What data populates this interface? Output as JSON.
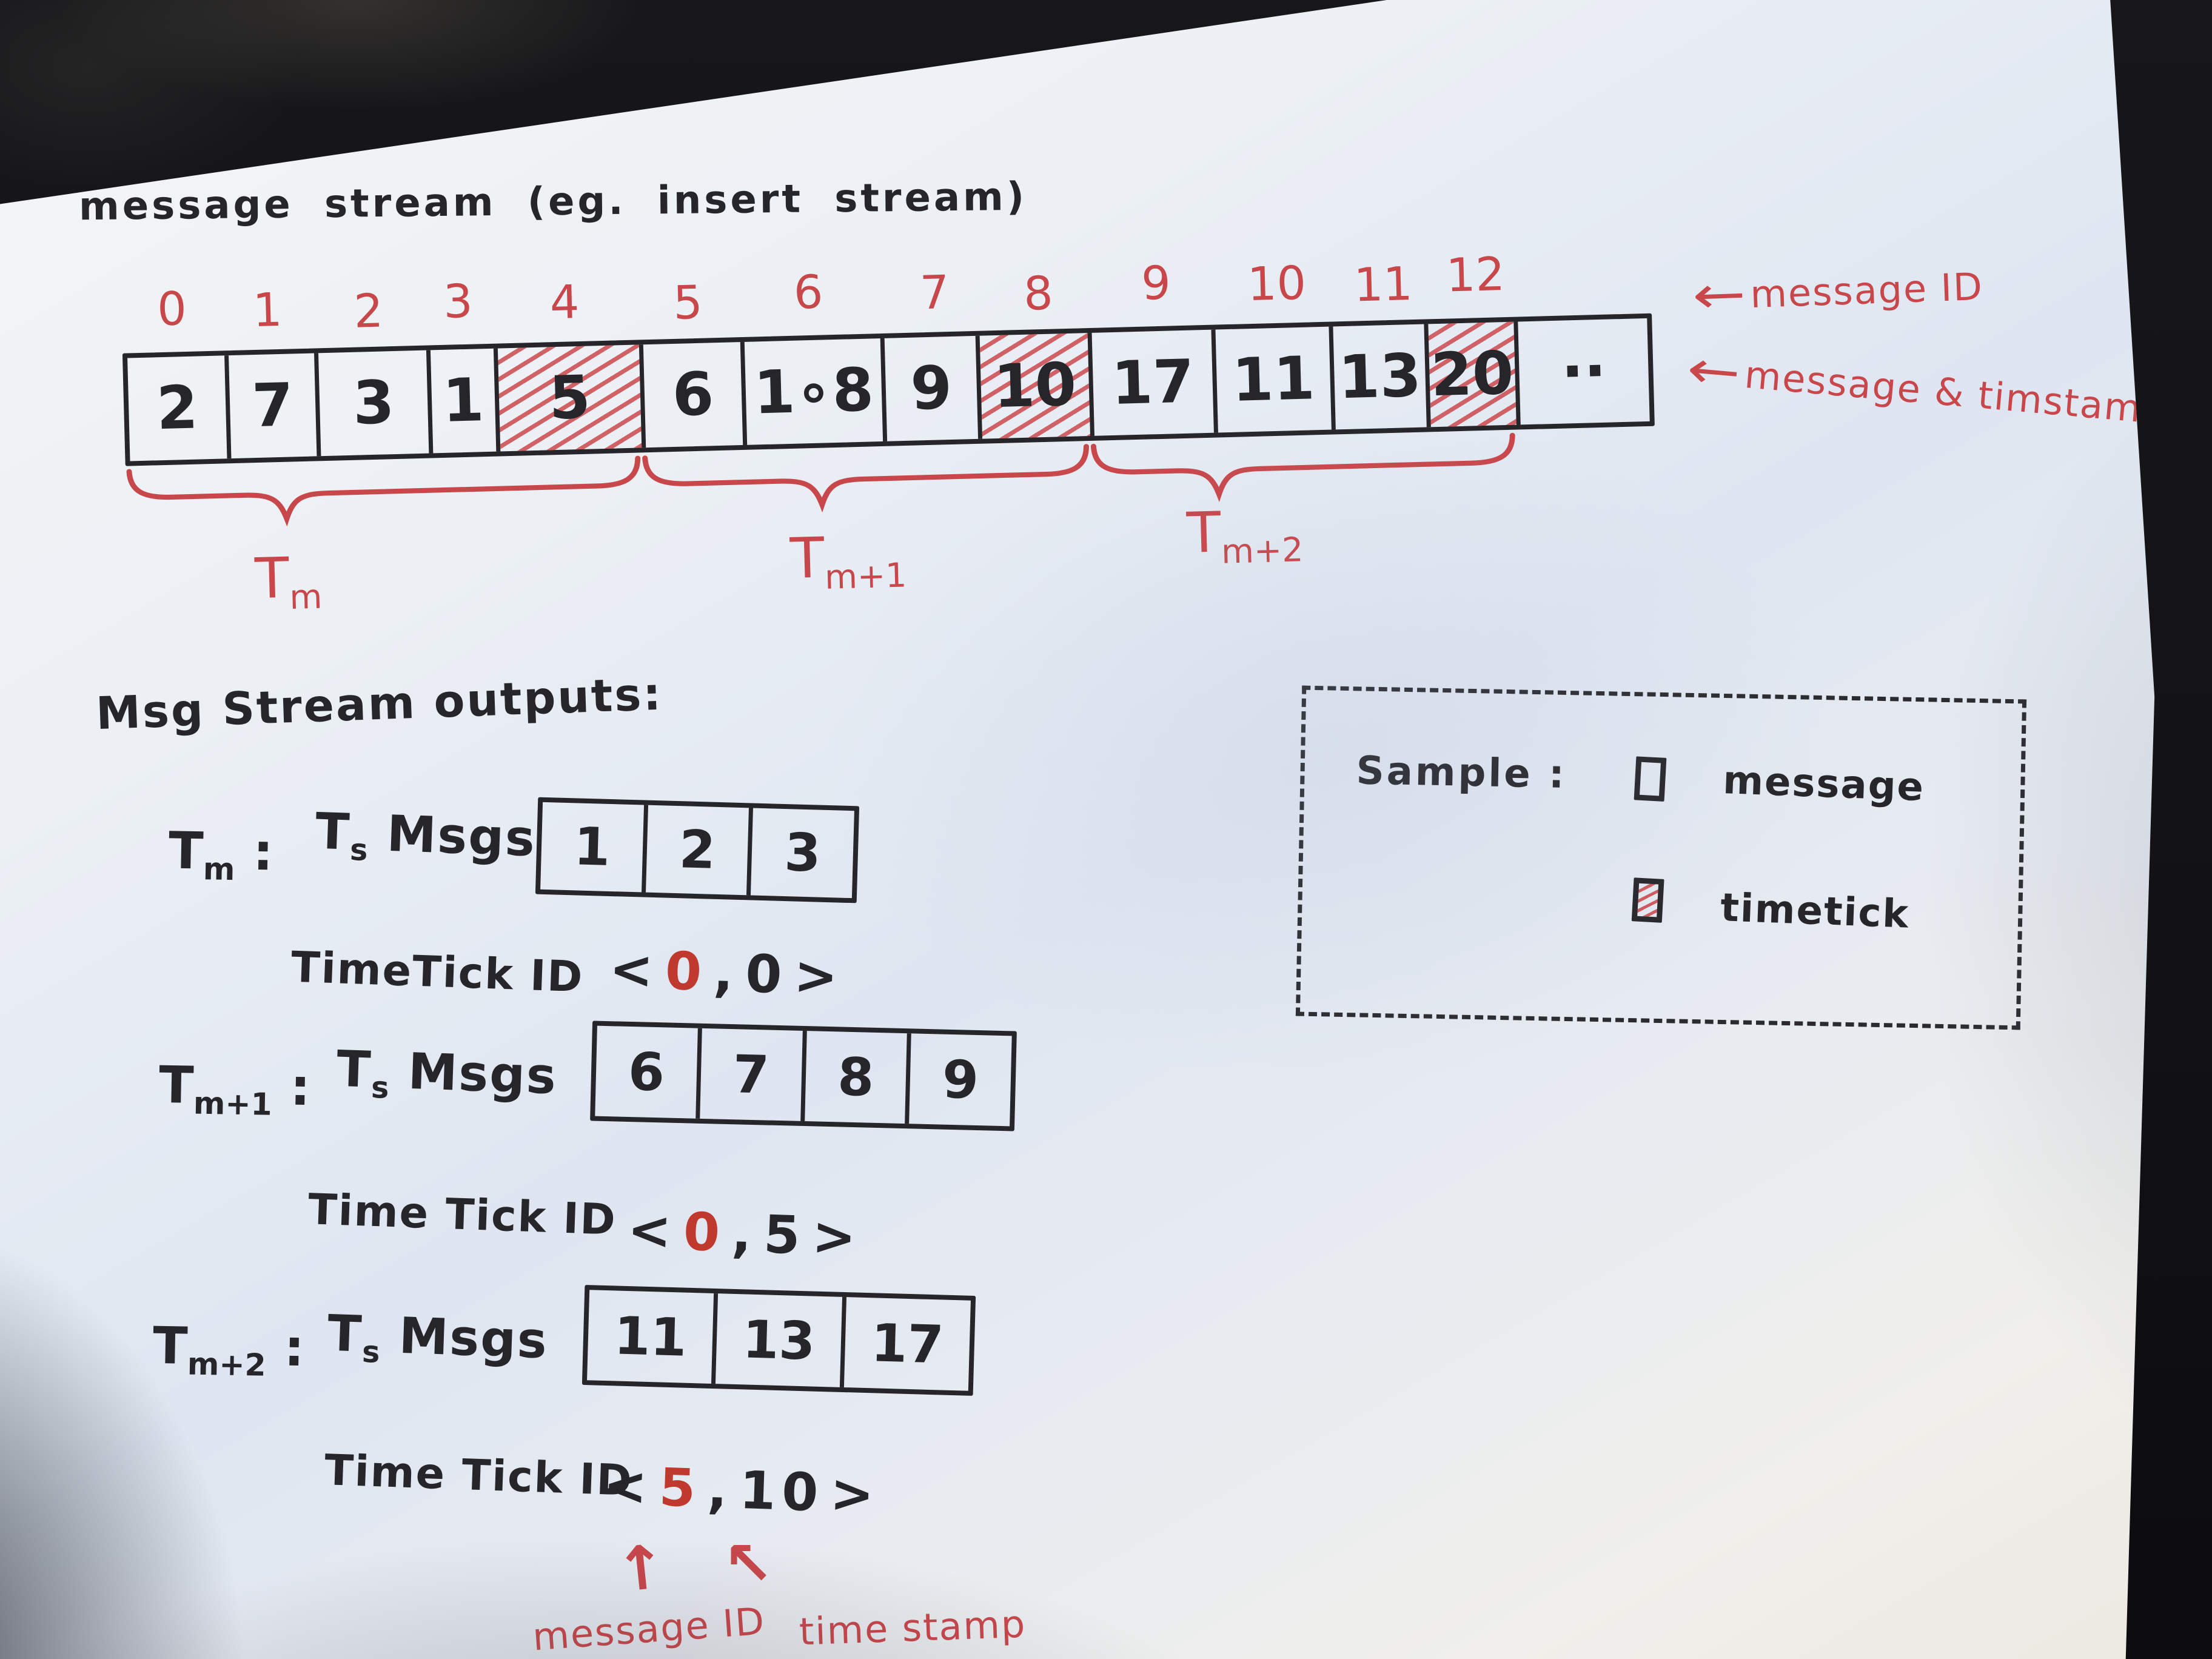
{
  "title": "message stream  (eg. insert stream)",
  "stream": {
    "indices": [
      "0",
      "1",
      "2",
      "3",
      "4",
      "5",
      "6",
      "7",
      "8",
      "9",
      "10",
      "11",
      "12"
    ],
    "cells": [
      {
        "value": "2",
        "timetick": false
      },
      {
        "value": "7",
        "timetick": false
      },
      {
        "value": "3",
        "timetick": false
      },
      {
        "value": "1",
        "timetick": false
      },
      {
        "value": "5",
        "timetick": true
      },
      {
        "value": "6",
        "timetick": false
      },
      {
        "value": "1∘8",
        "timetick": false
      },
      {
        "value": "9",
        "timetick": false
      },
      {
        "value": "10",
        "timetick": true
      },
      {
        "value": "17",
        "timetick": false
      },
      {
        "value": "11",
        "timetick": false
      },
      {
        "value": "13",
        "timetick": false
      },
      {
        "value": "20",
        "timetick": true
      },
      {
        "value": "··",
        "timetick": false
      }
    ],
    "windows": [
      {
        "label": "Tm"
      },
      {
        "label": "Tm+1"
      },
      {
        "label": "Tm+2"
      }
    ],
    "annotation_top": "message ID",
    "annotation_bottom": "message & timstamp",
    "arrow_glyph": "←"
  },
  "outputs": {
    "heading": "Msg Stream outputs:",
    "tick_open": "<",
    "tick_sep": ",",
    "tick_close": ">",
    "rows": [
      {
        "window": "Tm :",
        "msgs_label": "Ts Msgs",
        "msgs": [
          "1",
          "2",
          "3"
        ],
        "tick_label": "TimeTick ID",
        "tick_first": "0",
        "tick_second": "0"
      },
      {
        "window": "Tm+1 :",
        "msgs_label": "Ts Msgs",
        "msgs": [
          "6",
          "7",
          "8",
          "9"
        ],
        "tick_label": "Time Tick ID",
        "tick_first": "0",
        "tick_second": "5"
      },
      {
        "window": "Tm+2 :",
        "msgs_label": "Ts Msgs",
        "msgs": [
          "11",
          "13",
          "17"
        ],
        "tick_label": "Time Tick ID",
        "tick_first": "5",
        "tick_second": "10"
      }
    ],
    "callouts": {
      "up_arrow": "↑",
      "upleft_arrow": "↖",
      "message_id": "message ID",
      "timestamp": "time stamp"
    }
  },
  "legend": {
    "title": "Sample :",
    "items": [
      {
        "symbol": "plain-square",
        "label": "message"
      },
      {
        "symbol": "hatched-square",
        "label": "timetick"
      }
    ]
  },
  "colors": {
    "ink": "#26262a",
    "red_pen": "#c8474b",
    "paper": "#e7ebf1",
    "background": "#121215"
  }
}
